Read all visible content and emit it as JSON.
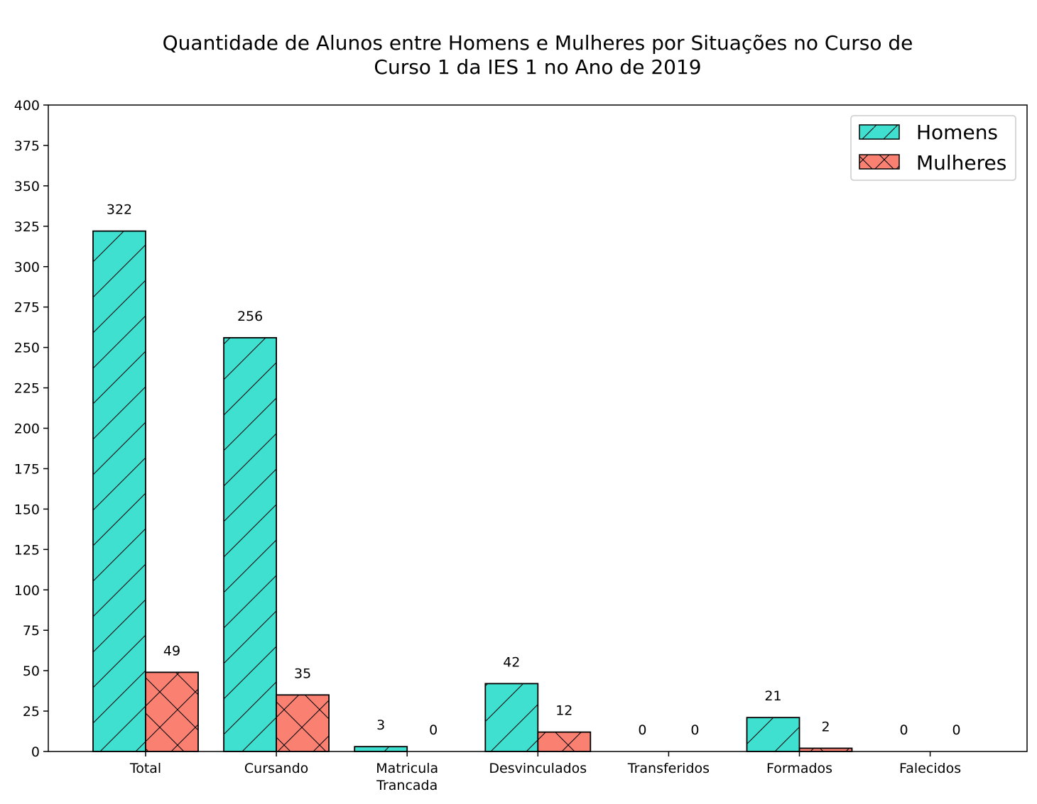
{
  "chart_data": {
    "type": "bar",
    "title_lines": [
      "Quantidade de Alunos entre Homens e Mulheres por Situações no Curso de",
      "Curso 1 da IES 1 no Ano de 2019"
    ],
    "xlabel": "",
    "ylabel": "",
    "categories": [
      [
        "Total"
      ],
      [
        "Cursando"
      ],
      [
        "Matricula",
        "Trancada"
      ],
      [
        "Desvinculados"
      ],
      [
        "Transferidos"
      ],
      [
        "Formados"
      ],
      [
        "Falecidos"
      ]
    ],
    "series": [
      {
        "name": "Homens",
        "values": [
          322,
          256,
          3,
          42,
          0,
          21,
          0
        ],
        "color": "#40E0D0",
        "hatch": "diagonal"
      },
      {
        "name": "Mulheres",
        "values": [
          49,
          35,
          0,
          12,
          0,
          2,
          0
        ],
        "color": "#FA8072",
        "hatch": "cross"
      }
    ],
    "ylim": [
      0,
      400
    ],
    "yticks": [
      "0",
      "25",
      "50",
      "75",
      "100",
      "125",
      "150",
      "175",
      "200",
      "225",
      "250",
      "275",
      "300",
      "325",
      "350",
      "375",
      "400"
    ],
    "legend_position": "top-right",
    "grid": false
  }
}
